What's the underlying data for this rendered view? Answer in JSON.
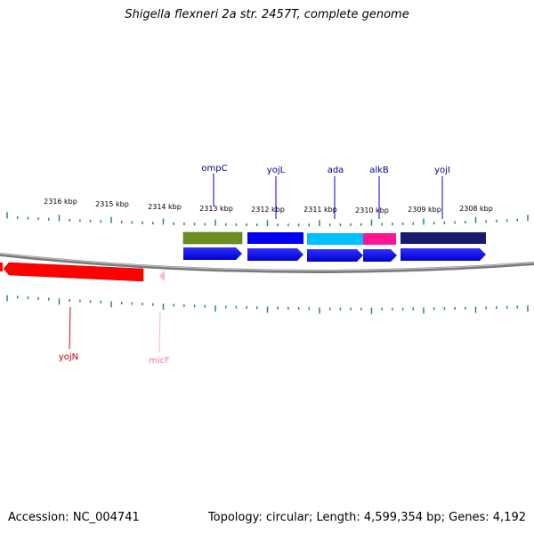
{
  "title": "Shigella flexneri 2a str. 2457T, complete genome",
  "ticks": [
    "2316 kbp",
    "2315 kbp",
    "2314 kbp",
    "2313 kbp",
    "2312 kbp",
    "2311 kbp",
    "2310 kbp",
    "2309 kbp",
    "2308 kbp"
  ],
  "features": [
    {
      "label": "ompC",
      "strand": "forward",
      "color": "#6b8e23"
    },
    {
      "label": "yojL",
      "strand": "forward",
      "color": "#0000ee"
    },
    {
      "label": "ada",
      "strand": "forward",
      "color": "#00bfff"
    },
    {
      "label": "alkB",
      "strand": "forward",
      "color": "#ff1493"
    },
    {
      "label": "yojI",
      "strand": "forward",
      "color": "#191970"
    },
    {
      "label": "yojN",
      "strand": "reverse",
      "color": "#ff0000"
    },
    {
      "label": "micF",
      "strand": "reverse",
      "color": "#ffb6c1"
    }
  ],
  "footer": {
    "accession": "Accession: NC_004741",
    "summary": "Topology: circular; Length: 4,599,354 bp; Genes: 4,192"
  },
  "colors": {
    "backbone": "#808080",
    "tick": "#2e8b57",
    "forward_cds": "#0000ee",
    "label_forward": "#00008b"
  }
}
